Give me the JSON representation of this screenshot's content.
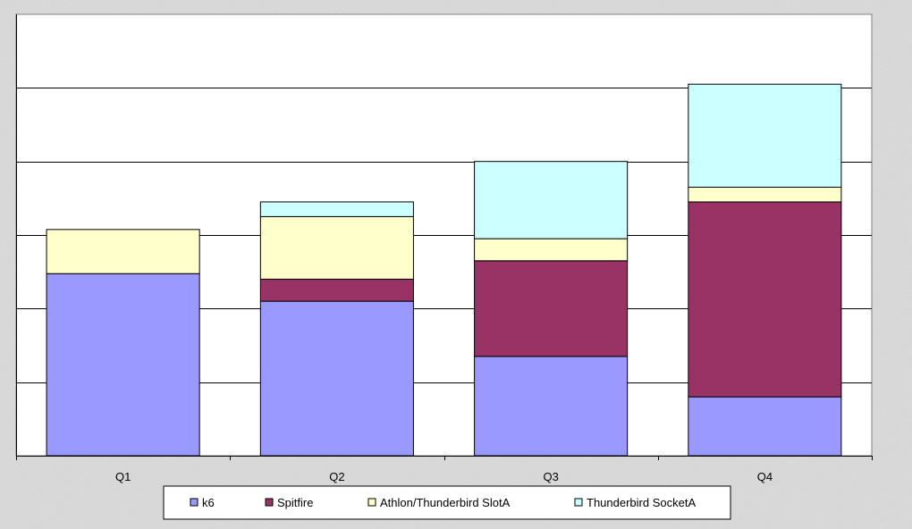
{
  "chart_data": {
    "type": "bar",
    "stacked": true,
    "categories": [
      "Q1",
      "Q2",
      "Q3",
      "Q4"
    ],
    "series": [
      {
        "name": "k6",
        "color": "#9999ff",
        "values": [
          49.5,
          42,
          27,
          16
        ]
      },
      {
        "name": "Spitfire",
        "color": "#993366",
        "values": [
          0,
          6,
          26,
          53
        ]
      },
      {
        "name": "Athlon/Thunderbird SlotA",
        "color": "#ffffcc",
        "values": [
          12,
          17,
          6,
          4
        ]
      },
      {
        "name": "Thunderbird SocketA",
        "color": "#ccffff",
        "values": [
          0,
          4,
          21,
          28
        ]
      }
    ],
    "ylim": [
      0,
      120
    ],
    "y_gridline_step": 20,
    "grid": true,
    "y_tick_labels_shown": false,
    "legend_position": "bottom"
  }
}
